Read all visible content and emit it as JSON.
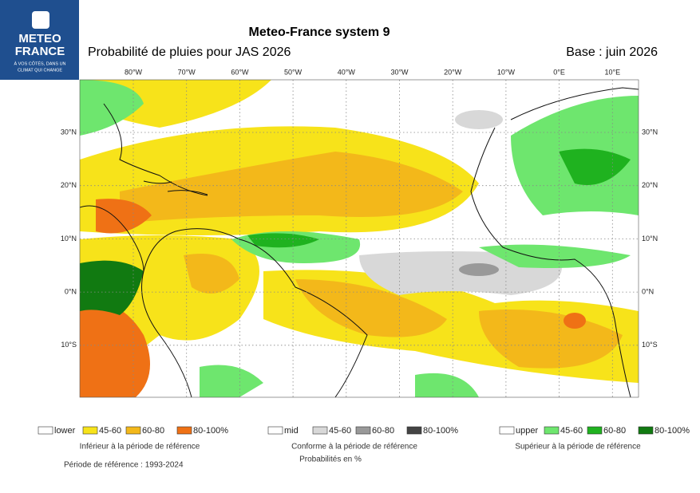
{
  "logo": {
    "line1": "METEO",
    "line2": "FRANCE",
    "tagline1": "À VOS CÔTÉS, DANS UN",
    "tagline2": "CLIMAT QUI CHANGE"
  },
  "header": {
    "title": "Meteo-France system 9",
    "subtitle": "Probabilité de pluies pour JAS 2026",
    "base": "Base : juin 2026"
  },
  "map": {
    "lon_labels": [
      "80°W",
      "70°W",
      "60°W",
      "50°W",
      "40°W",
      "30°W",
      "20°W",
      "10°W",
      "0°E",
      "10°E"
    ],
    "lat_labels": [
      "30°N",
      "20°N",
      "10°N",
      "0°N",
      "10°S"
    ]
  },
  "legend": [
    {
      "items": [
        "lower",
        "45-60",
        "60-80",
        "80-100%"
      ],
      "caption": "Inférieur à la période de référence"
    },
    {
      "items": [
        "mid",
        "45-60",
        "60-80",
        "80-100%"
      ],
      "caption": "Conforme à la période de référence"
    },
    {
      "items": [
        "upper",
        "45-60",
        "60-80",
        "80-100%"
      ],
      "caption": "Supérieur à la période de référence"
    }
  ],
  "footer": {
    "reference": "Période de référence : 1993-2024",
    "units": "Probabilités en %"
  }
}
